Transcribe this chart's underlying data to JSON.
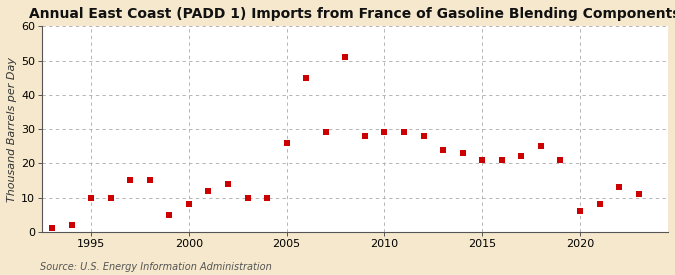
{
  "title": "Annual East Coast (PADD 1) Imports from France of Gasoline Blending Components",
  "ylabel": "Thousand Barrels per Day",
  "source": "Source: U.S. Energy Information Administration",
  "background_color": "#f5e8cc",
  "plot_bg_color": "#ffffff",
  "marker_color": "#cc0000",
  "years": [
    1993,
    1994,
    1995,
    1996,
    1997,
    1998,
    1999,
    2000,
    2001,
    2002,
    2003,
    2004,
    2005,
    2006,
    2007,
    2008,
    2009,
    2010,
    2011,
    2012,
    2013,
    2014,
    2015,
    2016,
    2017,
    2018,
    2019,
    2020,
    2021,
    2022,
    2023
  ],
  "values": [
    1,
    2,
    10,
    10,
    15,
    15,
    5,
    8,
    12,
    14,
    10,
    10,
    26,
    45,
    29,
    51,
    28,
    29,
    29,
    28,
    24,
    23,
    21,
    21,
    22,
    25,
    21,
    6,
    8,
    13,
    11
  ],
  "xlim": [
    1992.5,
    2024.5
  ],
  "ylim": [
    0,
    60
  ],
  "yticks": [
    0,
    10,
    20,
    30,
    40,
    50,
    60
  ],
  "xticks": [
    1995,
    2000,
    2005,
    2010,
    2015,
    2020
  ],
  "grid_color": "#aaaaaa",
  "title_fontsize": 10,
  "ylabel_fontsize": 8,
  "source_fontsize": 7,
  "tick_fontsize": 8
}
